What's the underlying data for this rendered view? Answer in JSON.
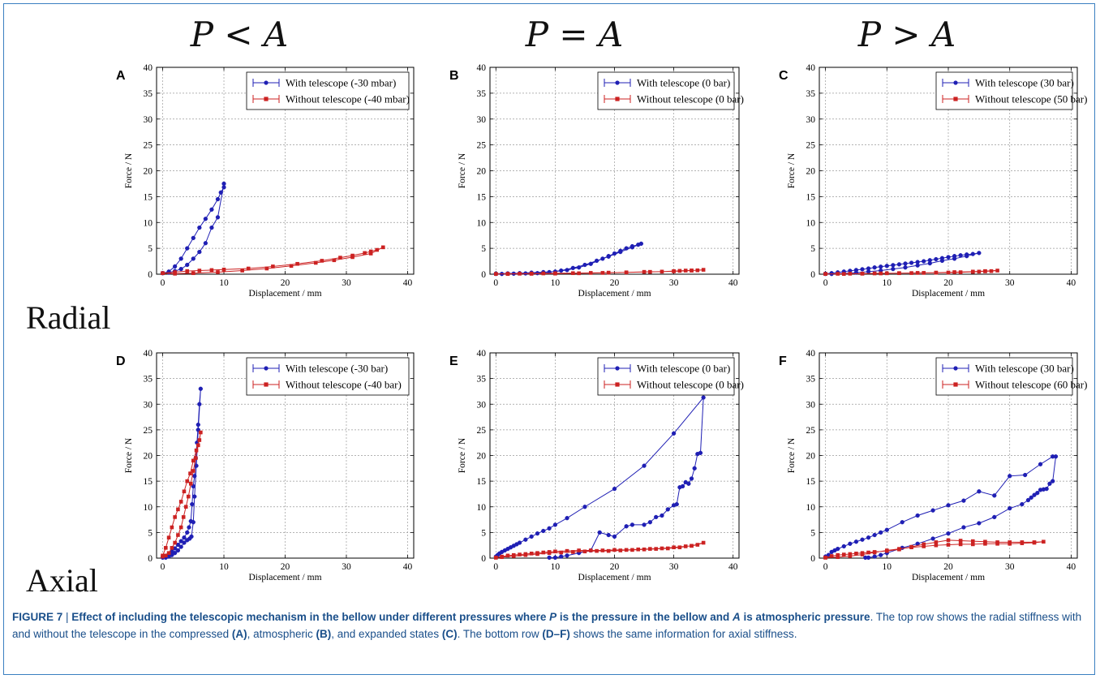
{
  "column_headers": [
    "P < A",
    "P = A",
    "P > A"
  ],
  "row_headers": [
    "Radial",
    "Axial"
  ],
  "caption": {
    "figure_label": "FIGURE 7",
    "separator": " | ",
    "bold_a": "Effect of including the telescopic mechanism in the bellow under different pressures where ",
    "bold_p": "P",
    "bold_b": " is the pressure in the bellow and ",
    "bold_atm": "A",
    "bold_c": " is atmospheric pressure",
    "text_1": ". The top row shows the radial stiffness with and without the telescope in the compressed ",
    "ref_a": "(A)",
    "text_2": ", atmospheric ",
    "ref_b": "(B)",
    "text_3": ", and expanded states ",
    "ref_c": "(C)",
    "text_4": ". The bottom row ",
    "ref_df": "(D–F)",
    "text_5": " shows the same information for axial stiffness."
  },
  "colors": {
    "with": "#1f1fb4",
    "without": "#cc2222"
  },
  "chart_data": [
    {
      "type": "line",
      "label": "A",
      "xlabel": "Displacement / mm",
      "ylabel": "Force / N",
      "xlim": [
        -1,
        41
      ],
      "ylim": [
        0,
        40
      ],
      "xticks": [
        0,
        10,
        20,
        30,
        40
      ],
      "yticks": [
        0,
        5,
        10,
        15,
        20,
        25,
        30,
        35,
        40
      ],
      "grid": true,
      "legend": "top-right",
      "series": [
        {
          "name": "With telescope (-30 mbar)",
          "marker": "circle",
          "x": [
            0,
            1,
            2,
            3,
            4,
            5,
            6,
            7,
            8,
            9,
            9.5,
            10,
            10,
            9,
            8,
            7,
            6,
            5,
            4,
            3,
            2,
            1,
            0
          ],
          "y": [
            0.2,
            0.5,
            1.5,
            3,
            5,
            7,
            9,
            10.7,
            12.5,
            14.5,
            15.8,
            16.8,
            17.5,
            11,
            9,
            6,
            4.3,
            3,
            1.8,
            1,
            0.6,
            0.3,
            0.2
          ]
        },
        {
          "name": "Without telescope (-40 mbar)",
          "marker": "square",
          "x": [
            0,
            2,
            4,
            6,
            8,
            10,
            14,
            18,
            22,
            26,
            29,
            31,
            33,
            34,
            35,
            36,
            34,
            31,
            28,
            25,
            21,
            17,
            13,
            9,
            5,
            2,
            0
          ],
          "y": [
            0.2,
            0.4,
            0.6,
            0.7,
            0.8,
            0.9,
            1.1,
            1.5,
            2,
            2.6,
            3.2,
            3.6,
            4.1,
            4.4,
            4.7,
            5.2,
            4,
            3.3,
            2.7,
            2.2,
            1.6,
            1.1,
            0.7,
            0.4,
            0.2,
            0.1,
            0.2
          ]
        }
      ]
    },
    {
      "type": "line",
      "label": "B",
      "xlabel": "Displacement / mm",
      "ylabel": "Force / N",
      "xlim": [
        -1,
        41
      ],
      "ylim": [
        0,
        40
      ],
      "xticks": [
        0,
        10,
        20,
        30,
        40
      ],
      "yticks": [
        0,
        5,
        10,
        15,
        20,
        25,
        30,
        35,
        40
      ],
      "grid": true,
      "legend": "top-right",
      "series": [
        {
          "name": "With telescope (0 bar)",
          "marker": "circle",
          "x": [
            0,
            2,
            4,
            6,
            8,
            10,
            12,
            14,
            16,
            18,
            19,
            20,
            21,
            22,
            23,
            24,
            24.5,
            23,
            21,
            19,
            17,
            15,
            13,
            11,
            9,
            7,
            5,
            3,
            1,
            0
          ],
          "y": [
            0.1,
            0.15,
            0.2,
            0.3,
            0.4,
            0.5,
            0.8,
            1.3,
            2,
            3,
            3.5,
            4,
            4.5,
            5,
            5.4,
            5.7,
            5.9,
            5.2,
            4.3,
            3.4,
            2.6,
            1.8,
            1.2,
            0.7,
            0.4,
            0.2,
            0.15,
            0.1,
            0.05,
            0.05
          ]
        },
        {
          "name": "Without telescope (0 bar)",
          "marker": "square",
          "x": [
            0,
            2,
            4,
            6,
            8,
            10,
            13,
            16,
            19,
            22,
            25,
            28,
            30,
            31,
            32,
            33,
            34,
            35,
            33,
            30,
            26,
            22,
            18,
            14,
            10,
            6,
            2,
            0
          ],
          "y": [
            0.05,
            0.08,
            0.1,
            0.12,
            0.15,
            0.18,
            0.2,
            0.25,
            0.3,
            0.35,
            0.45,
            0.5,
            0.6,
            0.65,
            0.7,
            0.72,
            0.75,
            0.85,
            0.7,
            0.55,
            0.45,
            0.35,
            0.25,
            0.18,
            0.12,
            0.08,
            0.05,
            0.05
          ]
        }
      ]
    },
    {
      "type": "line",
      "label": "C",
      "xlabel": "Displacement / mm",
      "ylabel": "Force / N",
      "xlim": [
        -1,
        41
      ],
      "ylim": [
        0,
        40
      ],
      "xticks": [
        0,
        10,
        20,
        30,
        40
      ],
      "yticks": [
        0,
        5,
        10,
        15,
        20,
        25,
        30,
        35,
        40
      ],
      "grid": true,
      "legend": "top-right",
      "series": [
        {
          "name": "With telescope (30 bar)",
          "marker": "circle",
          "x": [
            0,
            1,
            2,
            3,
            4,
            5,
            6,
            7,
            8,
            9,
            10,
            11,
            12,
            13,
            14,
            15,
            16,
            17,
            18,
            19,
            20,
            21,
            22,
            23,
            24,
            25,
            23,
            21,
            19,
            17,
            15,
            13,
            11,
            9,
            7,
            5,
            3,
            1,
            0
          ],
          "y": [
            0.1,
            0.2,
            0.35,
            0.5,
            0.65,
            0.8,
            0.95,
            1.1,
            1.3,
            1.45,
            1.6,
            1.75,
            1.9,
            2.05,
            2.2,
            2.35,
            2.5,
            2.7,
            2.9,
            3.1,
            3.3,
            3.5,
            3.65,
            3.8,
            3.9,
            4.1,
            3.5,
            3,
            2.6,
            2.1,
            1.7,
            1.3,
            1,
            0.7,
            0.5,
            0.3,
            0.15,
            0.05,
            0.05
          ]
        },
        {
          "name": "Without telescope (50 bar)",
          "marker": "square",
          "x": [
            0,
            2,
            4,
            6,
            8,
            10,
            12,
            14,
            16,
            18,
            20,
            22,
            24,
            25,
            26,
            27,
            28,
            26,
            24,
            21,
            18,
            15,
            12,
            9,
            6,
            3,
            0
          ],
          "y": [
            0.05,
            0.08,
            0.1,
            0.12,
            0.15,
            0.18,
            0.2,
            0.22,
            0.25,
            0.28,
            0.32,
            0.38,
            0.45,
            0.5,
            0.55,
            0.6,
            0.7,
            0.6,
            0.5,
            0.4,
            0.3,
            0.25,
            0.2,
            0.15,
            0.1,
            0.05,
            0.05
          ]
        }
      ]
    },
    {
      "type": "line",
      "label": "D",
      "xlabel": "Displacement / mm",
      "ylabel": "Force / N",
      "xlim": [
        -1,
        41
      ],
      "ylim": [
        0,
        40
      ],
      "xticks": [
        0,
        10,
        20,
        30,
        40
      ],
      "yticks": [
        0,
        5,
        10,
        15,
        20,
        25,
        30,
        35,
        40
      ],
      "grid": true,
      "legend": "top-right",
      "series": [
        {
          "name": "With telescope (-30 bar)",
          "marker": "circle",
          "x": [
            0,
            0.5,
            1,
            1.5,
            2,
            2.5,
            3,
            3.5,
            4,
            4.3,
            4.6,
            4.8,
            5,
            5.2,
            5.4,
            5.6,
            5.8,
            6,
            6.2,
            5.8,
            5.5,
            5.2,
            5,
            4.7,
            4.4,
            4,
            3.5,
            3,
            2.5,
            2,
            1.5,
            1,
            0.5,
            0
          ],
          "y": [
            0.2,
            0.4,
            0.8,
            1.3,
            1.9,
            2.6,
            3.3,
            4,
            5,
            6,
            7.2,
            10.5,
            14,
            16,
            19.5,
            22.5,
            26,
            30,
            33,
            25,
            18,
            12,
            7,
            4.2,
            3.8,
            3.5,
            3,
            2.2,
            1.5,
            1,
            0.6,
            0.3,
            0.1,
            0.1
          ]
        },
        {
          "name": "Without telescope (-40 bar)",
          "marker": "square",
          "x": [
            0,
            0.5,
            1,
            1.5,
            2,
            2.5,
            3,
            3.5,
            4,
            4.5,
            5,
            5.5,
            6,
            6.2,
            5.8,
            5.4,
            5,
            4.6,
            4.2,
            3.8,
            3.4,
            3,
            2.5,
            2,
            1.5,
            1,
            0.5,
            0
          ],
          "y": [
            0.5,
            2,
            4,
            6,
            8,
            9.5,
            11,
            13,
            15,
            16.5,
            19,
            21,
            23,
            24.5,
            22,
            19.5,
            17,
            14.5,
            12,
            10,
            8,
            6,
            4.5,
            3,
            2,
            1,
            0.5,
            0.3
          ]
        }
      ]
    },
    {
      "type": "line",
      "label": "E",
      "xlabel": "Displacement / mm",
      "ylabel": "Force / N",
      "xlim": [
        -1,
        41
      ],
      "ylim": [
        0,
        40
      ],
      "xticks": [
        0,
        10,
        20,
        30,
        40
      ],
      "yticks": [
        0,
        5,
        10,
        15,
        20,
        25,
        30,
        35,
        40
      ],
      "grid": true,
      "legend": "top-right",
      "series": [
        {
          "name": "With telescope (0 bar)",
          "marker": "circle",
          "x": [
            0,
            0.3,
            0.6,
            1,
            1.5,
            2,
            2.5,
            3,
            3.5,
            4,
            5,
            6,
            7,
            8,
            9,
            10,
            12,
            15,
            20,
            25,
            30,
            35,
            34.5,
            34,
            33.5,
            33,
            32.5,
            32,
            31.5,
            31,
            30.5,
            30,
            29,
            28,
            27,
            26,
            25,
            23,
            22,
            20,
            19,
            17.5,
            16,
            14,
            12,
            11,
            10,
            9
          ],
          "y": [
            0.3,
            0.6,
            0.9,
            1.2,
            1.5,
            1.8,
            2.1,
            2.4,
            2.7,
            3,
            3.6,
            4.2,
            4.8,
            5.3,
            5.8,
            6.5,
            7.8,
            10,
            13.5,
            18,
            24.3,
            31.3,
            20.5,
            20.3,
            17.5,
            15.5,
            14.5,
            14.8,
            14,
            13.8,
            10.5,
            10.3,
            9.5,
            8.3,
            8,
            7,
            6.5,
            6.5,
            6.2,
            4.2,
            4.5,
            5,
            1.5,
            1,
            0.5,
            0.3,
            0.1,
            0.1
          ]
        },
        {
          "name": "Without telescope (0 bar)",
          "marker": "square",
          "x": [
            0,
            1,
            2,
            3,
            4,
            5,
            6,
            7,
            8,
            9,
            10,
            12,
            14,
            16,
            18,
            20,
            22,
            24,
            26,
            28,
            30,
            32,
            33,
            34,
            35,
            33,
            31,
            29,
            27,
            25,
            23,
            21,
            19,
            17,
            15,
            13,
            11,
            9,
            7,
            5,
            3,
            1,
            0
          ],
          "y": [
            0.1,
            0.3,
            0.5,
            0.6,
            0.7,
            0.8,
            0.9,
            1,
            1.1,
            1.2,
            1.3,
            1.4,
            1.5,
            1.5,
            1.5,
            1.6,
            1.6,
            1.7,
            1.8,
            1.9,
            2.1,
            2.3,
            2.4,
            2.6,
            3,
            2.4,
            2.1,
            1.9,
            1.8,
            1.7,
            1.6,
            1.5,
            1.4,
            1.4,
            1.3,
            1.2,
            1.1,
            1,
            0.8,
            0.6,
            0.4,
            0.2,
            0.1
          ]
        }
      ]
    },
    {
      "type": "line",
      "label": "F",
      "xlabel": "Displacement / mm",
      "ylabel": "Force / N",
      "xlim": [
        -1,
        41
      ],
      "ylim": [
        0,
        40
      ],
      "xticks": [
        0,
        10,
        20,
        30,
        40
      ],
      "yticks": [
        0,
        5,
        10,
        15,
        20,
        25,
        30,
        35,
        40
      ],
      "grid": true,
      "legend": "top-right",
      "series": [
        {
          "name": "With telescope (30 bar)",
          "marker": "circle",
          "x": [
            0,
            0.5,
            1,
            1.5,
            2,
            3,
            4,
            5,
            6,
            7,
            8,
            9,
            10,
            12.5,
            15,
            17.5,
            20,
            22.5,
            25,
            27.5,
            30,
            32.5,
            35,
            37,
            37.5,
            37,
            36.5,
            36,
            35.5,
            35,
            34.5,
            34,
            33.5,
            33,
            32,
            30,
            27.5,
            25,
            22.5,
            20,
            17.5,
            15,
            12.5,
            10,
            9,
            8,
            7,
            6.5
          ],
          "y": [
            0.3,
            0.6,
            1.2,
            1.5,
            1.8,
            2.3,
            2.8,
            3.2,
            3.6,
            4,
            4.5,
            5,
            5.5,
            7,
            8.3,
            9.3,
            10.3,
            11.2,
            13,
            12.2,
            16,
            16.2,
            18.3,
            19.8,
            19.8,
            15,
            14.5,
            13.5,
            13.4,
            13.3,
            12.7,
            12.3,
            11.8,
            11.3,
            10.5,
            9.7,
            8,
            6.8,
            6,
            4.8,
            3.8,
            2.8,
            2,
            1,
            0.6,
            0.3,
            0.1,
            0.1
          ]
        },
        {
          "name": "Without telescope (60 bar)",
          "marker": "square",
          "x": [
            0,
            1,
            2,
            3,
            4,
            5,
            6,
            7,
            8,
            10,
            12,
            14,
            16,
            18,
            20,
            22,
            24,
            26,
            28,
            30,
            32,
            34,
            35.5,
            34,
            32,
            30,
            28,
            26,
            24,
            22,
            20,
            18,
            16,
            14,
            12,
            10,
            8,
            6,
            4,
            2,
            0
          ],
          "y": [
            0.1,
            0.4,
            0.6,
            0.7,
            0.8,
            0.9,
            1,
            1.1,
            1.2,
            1.4,
            1.7,
            2.2,
            2.7,
            3.1,
            3.5,
            3.4,
            3.3,
            3.2,
            3.1,
            3.1,
            3.1,
            3.1,
            3.2,
            3,
            2.9,
            2.8,
            2.8,
            2.8,
            2.7,
            2.7,
            2.6,
            2.5,
            2.3,
            2.1,
            1.8,
            1.5,
            1.1,
            0.7,
            0.4,
            0.2,
            0.1
          ]
        }
      ]
    }
  ]
}
